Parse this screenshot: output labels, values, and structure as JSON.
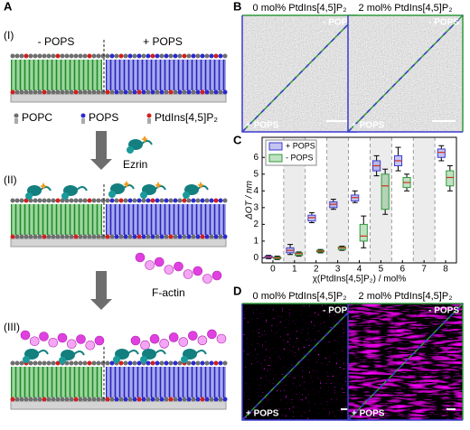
{
  "figure": {
    "panel_a": {
      "letter": "A",
      "stage_1": "(I)",
      "stage_2": "(II)",
      "stage_3": "(III)",
      "minus_pops": "- POPS",
      "plus_pops": "+ POPS",
      "legend": [
        "POPC",
        "POPS",
        "PtdIns[4,5]P₂"
      ],
      "ezrin": "Ezrin",
      "f_actin": "F-actin"
    },
    "panel_b": {
      "letter": "B",
      "titles": [
        "0 mol% PtdIns[4,5]P₂",
        "2 mol% PtdIns[4,5]P₂"
      ],
      "minus_pops": "- POPS",
      "plus_pops": "+ POPS"
    },
    "panel_c": {
      "letter": "C"
    },
    "panel_d": {
      "letter": "D",
      "titles": [
        "0 mol% PtdIns[4,5]P₂",
        "2 mol% PtdIns[4,5]P₂"
      ],
      "minus_pops": "- POPS",
      "plus_pops": "+ POPS"
    }
  },
  "chart_data": {
    "type": "box",
    "x_label": "χ(PtdIns[4,5]P₂) / mol%",
    "y_label": "ΔOT / nm",
    "x": [
      0,
      1,
      2,
      3,
      4,
      5,
      6,
      8
    ],
    "xlim": [
      -0.5,
      8.5
    ],
    "xticks": [
      0,
      1,
      2,
      3,
      4,
      5,
      6,
      7,
      8
    ],
    "ylim": [
      -0.3,
      7.2
    ],
    "yticks": [
      0,
      1,
      2,
      3,
      4,
      5,
      6
    ],
    "legend": "upper left",
    "series": [
      {
        "name": "+ POPS",
        "color": "#3a3ad0",
        "values": [
          [
            -0.05,
            0.0,
            0.05,
            0.1,
            0.15
          ],
          [
            0.2,
            0.3,
            0.45,
            0.6,
            0.8
          ],
          [
            2.1,
            2.2,
            2.4,
            2.55,
            2.7
          ],
          [
            2.9,
            3.0,
            3.2,
            3.35,
            3.5
          ],
          [
            3.3,
            3.4,
            3.6,
            3.75,
            4.0
          ],
          [
            4.9,
            5.2,
            5.5,
            5.8,
            6.1
          ],
          [
            5.2,
            5.5,
            5.8,
            6.1,
            6.6
          ],
          [
            5.8,
            6.0,
            6.3,
            6.5,
            6.7
          ]
        ]
      },
      {
        "name": "- POPS",
        "color": "#2f9a3a",
        "values": [
          [
            -0.1,
            -0.05,
            0.0,
            0.05,
            0.1
          ],
          [
            0.1,
            0.15,
            0.25,
            0.3,
            0.35
          ],
          [
            0.3,
            0.35,
            0.4,
            0.45,
            0.5
          ],
          [
            0.45,
            0.5,
            0.6,
            0.65,
            0.7
          ],
          [
            0.6,
            1.0,
            1.3,
            2.0,
            2.5
          ],
          [
            2.6,
            2.9,
            4.3,
            5.0,
            5.3
          ],
          [
            4.0,
            4.2,
            4.5,
            4.8,
            5.0
          ],
          [
            4.0,
            4.3,
            4.8,
            5.2,
            5.5
          ]
        ]
      }
    ]
  }
}
